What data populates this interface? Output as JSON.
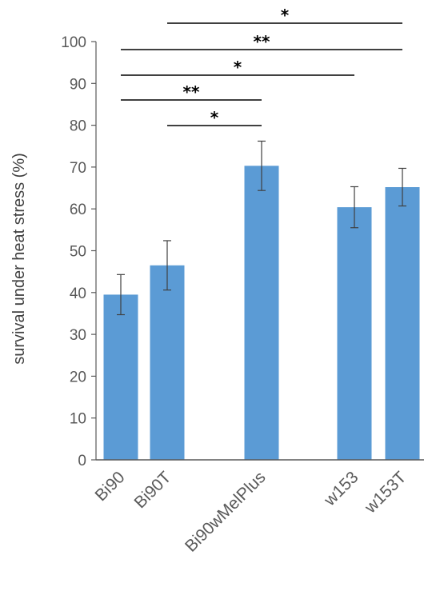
{
  "chart_data": {
    "type": "bar",
    "title": "",
    "xlabel": "",
    "ylabel": "survival under heat stress (%)",
    "ylim": [
      0,
      100
    ],
    "yticks": [
      0,
      10,
      20,
      30,
      40,
      50,
      60,
      70,
      80,
      90,
      100
    ],
    "categories": [
      "Bi90",
      "Bi90T",
      "Bi90wMelPlus",
      "w153",
      "w153T"
    ],
    "values": [
      39.5,
      46.5,
      70.3,
      60.4,
      65.2
    ],
    "errors": [
      4.8,
      5.9,
      5.9,
      4.9,
      4.5
    ],
    "bar_color": "#5b9bd5",
    "error_color": "#404040",
    "grid": false,
    "significance": [
      {
        "from": "Bi90T",
        "to": "w153T",
        "label": "*"
      },
      {
        "from": "Bi90",
        "to": "w153T",
        "label": "**"
      },
      {
        "from": "Bi90",
        "to": "w153",
        "label": "*"
      },
      {
        "from": "Bi90",
        "to": "Bi90wMelPlus",
        "label": "**"
      },
      {
        "from": "Bi90T",
        "to": "Bi90wMelPlus",
        "label": "*"
      }
    ]
  }
}
